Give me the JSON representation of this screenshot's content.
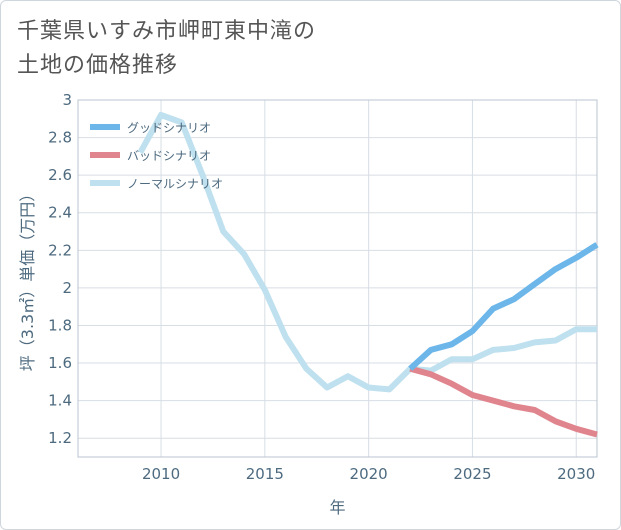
{
  "title": {
    "line1": "千葉県いすみ市岬町東中滝の",
    "line2": "土地の価格推移"
  },
  "chart_data": {
    "type": "line",
    "xlabel": "年",
    "ylabel": "坪（3.3㎡）単価（万円）",
    "xlim": [
      2006,
      2031
    ],
    "ylim": [
      1.1,
      3.0
    ],
    "x_ticks": [
      2010,
      2015,
      2020,
      2025,
      2030
    ],
    "y_ticks": [
      1.2,
      1.4,
      1.6,
      1.8,
      2.0,
      2.2,
      2.4,
      2.6,
      2.8,
      3.0
    ],
    "y_tick_labels": [
      "1.2",
      "1.4",
      "1.6",
      "1.8",
      "2",
      "2.2",
      "2.4",
      "2.6",
      "2.8",
      "3"
    ],
    "x_tick_labels": [
      "2010",
      "2015",
      "2020",
      "2025",
      "2030"
    ],
    "grid": true,
    "legend_position": "top-left",
    "series": [
      {
        "name": "グッドシナリオ",
        "color": "#6cb6ea",
        "x": [
          2022,
          2023,
          2024,
          2025,
          2026,
          2027,
          2028,
          2029,
          2030,
          2031
        ],
        "values": [
          1.57,
          1.67,
          1.7,
          1.77,
          1.89,
          1.94,
          2.02,
          2.1,
          2.16,
          2.23
        ]
      },
      {
        "name": "バッドシナリオ",
        "color": "#e0858e",
        "x": [
          2022,
          2023,
          2024,
          2025,
          2026,
          2027,
          2028,
          2029,
          2030,
          2031
        ],
        "values": [
          1.57,
          1.54,
          1.49,
          1.43,
          1.4,
          1.37,
          1.35,
          1.29,
          1.25,
          1.22
        ]
      },
      {
        "name": "ノーマルシナリオ",
        "color": "#bfe0ee",
        "x": [
          2009,
          2010,
          2011,
          2012,
          2013,
          2014,
          2015,
          2016,
          2017,
          2018,
          2019,
          2020,
          2021,
          2022,
          2023,
          2024,
          2025,
          2026,
          2027,
          2028,
          2029,
          2030,
          2031
        ],
        "values": [
          2.72,
          2.92,
          2.88,
          2.6,
          2.3,
          2.18,
          1.99,
          1.74,
          1.57,
          1.47,
          1.53,
          1.47,
          1.46,
          1.57,
          1.56,
          1.62,
          1.62,
          1.67,
          1.68,
          1.71,
          1.72,
          1.78,
          1.78
        ]
      }
    ]
  }
}
